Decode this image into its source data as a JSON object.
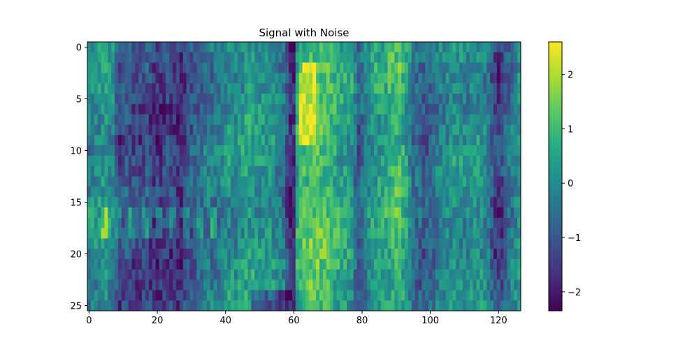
{
  "chart_data": {
    "type": "heatmap",
    "title": "Signal with Noise",
    "xlabel": "",
    "ylabel": "",
    "ncols": 127,
    "nrows": 26,
    "xlim": [
      -0.5,
      126.5
    ],
    "ylim": [
      25.5,
      -0.5
    ],
    "x_ticks": [
      0,
      20,
      40,
      60,
      80,
      100,
      120
    ],
    "y_ticks": [
      0,
      5,
      10,
      15,
      20,
      25
    ],
    "colormap": "viridis",
    "colorbar": {
      "vmin": -2.35,
      "vmax": 2.6,
      "ticks": [
        -2,
        -1,
        0,
        1,
        2
      ],
      "tick_labels": [
        "−2",
        "−1",
        "0",
        "1",
        "2"
      ]
    },
    "grid": false,
    "value_range_note": "values range approximately -2.3 to 2.6",
    "column_profile": [
      [
        0,
        -0.2
      ],
      [
        3,
        0.1
      ],
      [
        5,
        0.3
      ],
      [
        7,
        0.0
      ],
      [
        9,
        -1.4
      ],
      [
        11,
        -0.9
      ],
      [
        13,
        -1.2
      ],
      [
        15,
        -1.3
      ],
      [
        17,
        -1.0
      ],
      [
        19,
        -1.6
      ],
      [
        21,
        -1.5
      ],
      [
        23,
        -1.2
      ],
      [
        25,
        -1.5
      ],
      [
        27,
        -1.8
      ],
      [
        29,
        -1.0
      ],
      [
        31,
        -0.9
      ],
      [
        33,
        -0.6
      ],
      [
        35,
        -0.3
      ],
      [
        37,
        -0.5
      ],
      [
        39,
        -0.2
      ],
      [
        41,
        0.1
      ],
      [
        43,
        0.0
      ],
      [
        45,
        0.2
      ],
      [
        47,
        0.4
      ],
      [
        49,
        0.3
      ],
      [
        51,
        0.1
      ],
      [
        53,
        0.2
      ],
      [
        55,
        -0.1
      ],
      [
        57,
        -0.4
      ],
      [
        59,
        -1.9
      ],
      [
        60,
        -1.7
      ],
      [
        61,
        0.6
      ],
      [
        63,
        1.1
      ],
      [
        65,
        1.3
      ],
      [
        67,
        1.2
      ],
      [
        69,
        1.1
      ],
      [
        71,
        0.9
      ],
      [
        73,
        0.6
      ],
      [
        75,
        0.5
      ],
      [
        77,
        0.2
      ],
      [
        79,
        -1.0
      ],
      [
        81,
        -0.2
      ],
      [
        83,
        0.3
      ],
      [
        85,
        0.4
      ],
      [
        87,
        0.6
      ],
      [
        89,
        0.8
      ],
      [
        91,
        1.0
      ],
      [
        93,
        0.4
      ],
      [
        95,
        -0.6
      ],
      [
        97,
        -0.8
      ],
      [
        99,
        -0.9
      ],
      [
        101,
        -0.5
      ],
      [
        103,
        -0.2
      ],
      [
        105,
        0.0
      ],
      [
        107,
        0.2
      ],
      [
        109,
        0.1
      ],
      [
        111,
        0.0
      ],
      [
        113,
        0.2
      ],
      [
        115,
        0.1
      ],
      [
        117,
        -0.3
      ],
      [
        119,
        -1.4
      ],
      [
        121,
        -1.3
      ],
      [
        123,
        -0.5
      ],
      [
        126,
        0.2
      ]
    ]
  }
}
